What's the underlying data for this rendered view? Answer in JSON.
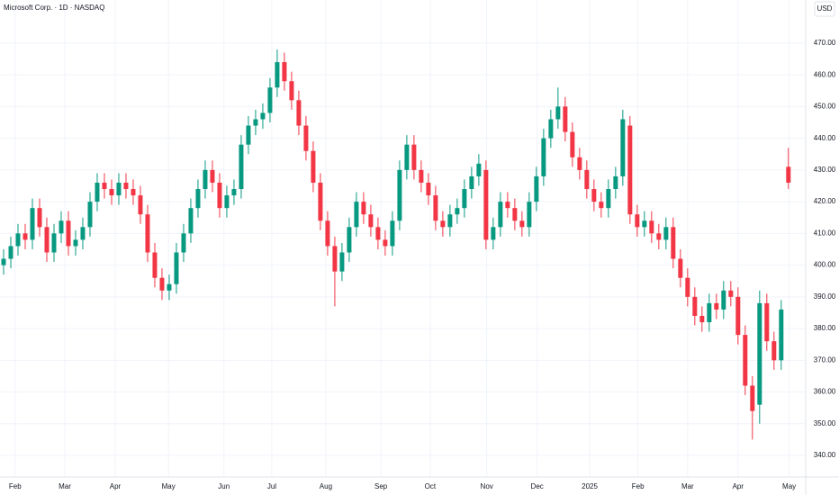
{
  "chart_data": {
    "type": "candlestick",
    "title": "Microsoft Corp. · 1D · NASDAQ",
    "currency": "USD",
    "up_color": "#089981",
    "down_color": "#f23645",
    "grid": true,
    "xlim": [
      -0.5,
      111.4
    ],
    "ylim": [
      333.2,
      483.6
    ],
    "xticks": [
      {
        "value": 1.6,
        "label": "Feb"
      },
      {
        "value": 8.5,
        "label": "Mar"
      },
      {
        "value": 15.5,
        "label": "Apr"
      },
      {
        "value": 22.9,
        "label": "May"
      },
      {
        "value": 30.6,
        "label": "Jun"
      },
      {
        "value": 37.25,
        "label": "Jul"
      },
      {
        "value": 44.75,
        "label": "Aug"
      },
      {
        "value": 52.4,
        "label": "Sep"
      },
      {
        "value": 59.25,
        "label": "Oct"
      },
      {
        "value": 67.1,
        "label": "Nov"
      },
      {
        "value": 74.1,
        "label": "Dec"
      },
      {
        "value": 81.4,
        "label": "2025"
      },
      {
        "value": 88.1,
        "label": "Feb"
      },
      {
        "value": 95,
        "label": "Mar"
      },
      {
        "value": 102,
        "label": "Apr"
      },
      {
        "value": 109.1,
        "label": "May"
      }
    ],
    "yticks": [
      {
        "value": 340,
        "label": "340.00"
      },
      {
        "value": 350,
        "label": "350.00"
      },
      {
        "value": 360,
        "label": "360.00"
      },
      {
        "value": 370,
        "label": "370.00"
      },
      {
        "value": 380,
        "label": "380.00"
      },
      {
        "value": 390,
        "label": "390.00"
      },
      {
        "value": 400,
        "label": "400.00"
      },
      {
        "value": 410,
        "label": "410.00"
      },
      {
        "value": 420,
        "label": "420.00"
      },
      {
        "value": 430,
        "label": "430.00"
      },
      {
        "value": 440,
        "label": "440.00"
      },
      {
        "value": 450,
        "label": "450.00"
      },
      {
        "value": 460,
        "label": "460.00"
      },
      {
        "value": 470,
        "label": "470.00"
      }
    ],
    "open": [
      400,
      402,
      406,
      410,
      408,
      418,
      412,
      404,
      410,
      414,
      406,
      408,
      412,
      420,
      426,
      424,
      422,
      426,
      424,
      422,
      416,
      404,
      396,
      392,
      394,
      404,
      410,
      418,
      424,
      430,
      426,
      418,
      422,
      424,
      438,
      444,
      446,
      448,
      456,
      464,
      458,
      452,
      444,
      436,
      426,
      414,
      406,
      398,
      404,
      412,
      420,
      416,
      412,
      408,
      406,
      414,
      430,
      438,
      430,
      426,
      422,
      414,
      412,
      416,
      418,
      424,
      428,
      430,
      408,
      412,
      420,
      418,
      414,
      412,
      420,
      428,
      440,
      446,
      450,
      442,
      434,
      430,
      424,
      420,
      418,
      424,
      428,
      444,
      416,
      412,
      414,
      410,
      408,
      412,
      402,
      396,
      390,
      384,
      382,
      388,
      386,
      392,
      390,
      378,
      362,
      356,
      388,
      376,
      370,
      431
    ],
    "high": [
      405,
      409,
      413,
      413,
      421,
      421,
      415,
      413,
      417,
      417,
      411,
      415,
      423,
      429,
      429,
      427,
      429,
      429,
      427,
      425,
      419,
      407,
      399,
      397,
      407,
      413,
      421,
      427,
      433,
      433,
      429,
      425,
      427,
      441,
      447,
      449,
      451,
      459,
      468,
      467,
      461,
      455,
      447,
      439,
      429,
      417,
      409,
      407,
      415,
      423,
      423,
      419,
      415,
      411,
      417,
      433,
      441,
      441,
      433,
      429,
      425,
      417,
      419,
      421,
      427,
      431,
      435,
      433,
      415,
      423,
      423,
      421,
      417,
      423,
      431,
      443,
      449,
      456,
      453,
      445,
      437,
      433,
      427,
      423,
      427,
      431,
      449,
      447,
      419,
      417,
      417,
      413,
      415,
      415,
      405,
      399,
      393,
      387,
      391,
      391,
      395,
      395,
      393,
      381,
      365,
      392,
      391,
      379,
      389,
      437
    ],
    "low": [
      397,
      399,
      403,
      405,
      405,
      409,
      401,
      401,
      407,
      403,
      403,
      405,
      409,
      417,
      421,
      419,
      419,
      421,
      419,
      413,
      401,
      393,
      389,
      389,
      391,
      401,
      407,
      415,
      421,
      423,
      415,
      415,
      419,
      421,
      435,
      441,
      443,
      445,
      453,
      455,
      449,
      441,
      433,
      423,
      411,
      403,
      387,
      395,
      401,
      409,
      413,
      409,
      405,
      403,
      403,
      411,
      427,
      427,
      423,
      419,
      411,
      409,
      409,
      413,
      415,
      421,
      425,
      405,
      405,
      409,
      415,
      411,
      409,
      409,
      417,
      425,
      437,
      443,
      439,
      431,
      427,
      421,
      417,
      415,
      415,
      421,
      425,
      413,
      409,
      409,
      407,
      405,
      405,
      399,
      393,
      387,
      381,
      379,
      379,
      383,
      383,
      387,
      375,
      359,
      345,
      350,
      373,
      367,
      367,
      424
    ],
    "close": [
      402,
      406,
      410,
      408,
      418,
      412,
      404,
      410,
      414,
      406,
      408,
      412,
      420,
      426,
      424,
      422,
      426,
      424,
      422,
      416,
      404,
      396,
      392,
      394,
      404,
      410,
      418,
      424,
      430,
      426,
      418,
      422,
      424,
      438,
      444,
      446,
      448,
      456,
      464,
      458,
      452,
      444,
      436,
      426,
      414,
      406,
      398,
      404,
      412,
      420,
      416,
      412,
      408,
      406,
      414,
      430,
      438,
      430,
      426,
      422,
      414,
      412,
      416,
      418,
      424,
      428,
      432,
      408,
      412,
      420,
      418,
      414,
      412,
      420,
      428,
      440,
      446,
      450,
      442,
      434,
      430,
      424,
      420,
      418,
      424,
      428,
      446,
      416,
      412,
      414,
      410,
      408,
      412,
      402,
      396,
      390,
      384,
      382,
      388,
      386,
      392,
      390,
      378,
      362,
      354,
      388,
      376,
      370,
      386,
      426
    ]
  }
}
